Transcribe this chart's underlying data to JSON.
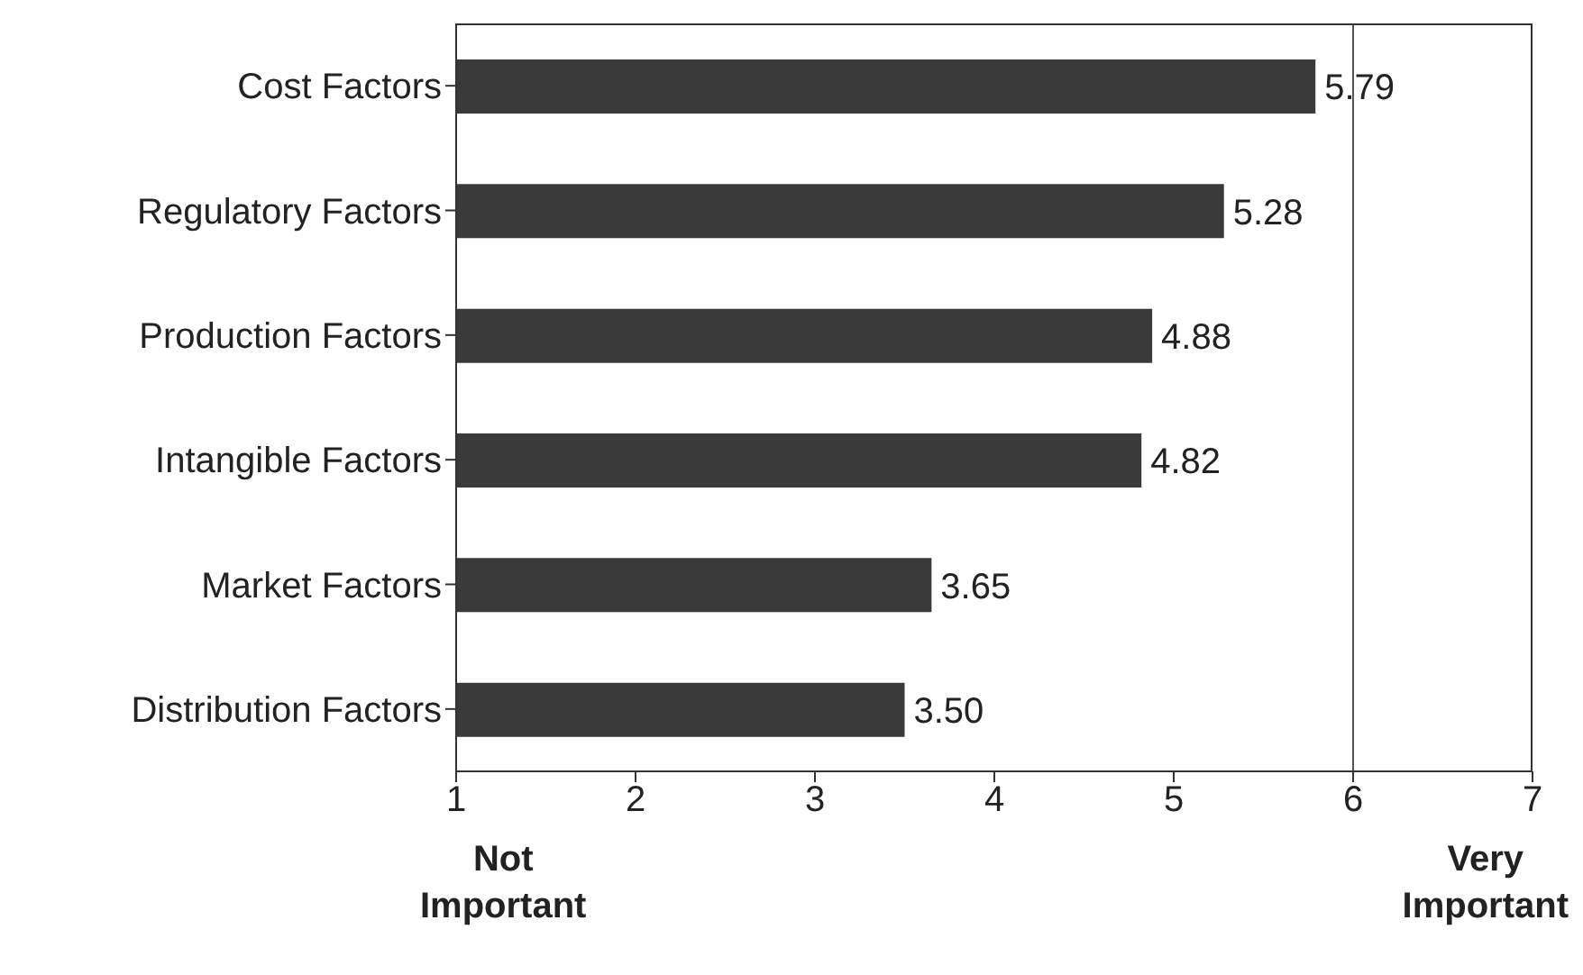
{
  "chart_data": {
    "type": "bar",
    "orientation": "horizontal",
    "categories": [
      "Cost Factors",
      "Regulatory Factors",
      "Production Factors",
      "Intangible Factors",
      "Market Factors",
      "Distribution Factors"
    ],
    "values": [
      5.79,
      5.28,
      4.88,
      4.82,
      3.65,
      3.5
    ],
    "color": "#3a3a3a",
    "value_labels": [
      "5.79",
      "5.28",
      "4.88",
      "4.82",
      "3.65",
      "3.50"
    ],
    "xlim": [
      1,
      7
    ],
    "xticks": [
      1,
      2,
      3,
      4,
      5,
      6,
      7
    ],
    "ref_lines": [
      {
        "axis": "x",
        "value": 6,
        "color": "#555555"
      }
    ],
    "annotations": [
      "Not Important",
      "Very Important"
    ],
    "grid": false,
    "legend": false
  }
}
